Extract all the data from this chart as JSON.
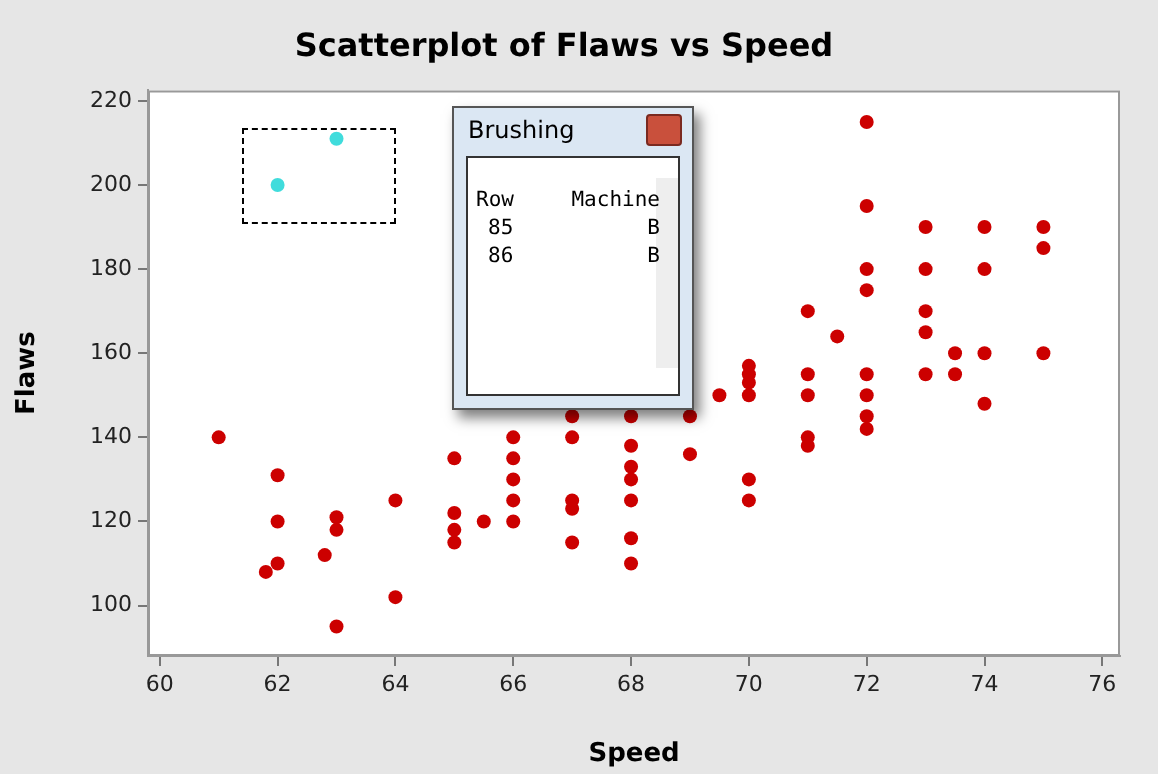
{
  "chart_data": {
    "type": "scatter",
    "title": "Scatterplot of Flaws vs Speed",
    "xlabel": "Speed",
    "ylabel": "Flaws",
    "xlim": [
      59.8,
      76.3
    ],
    "ylim": [
      88,
      222.5
    ],
    "xticks": [
      60,
      62,
      64,
      66,
      68,
      70,
      72,
      74,
      76
    ],
    "yticks": [
      100,
      120,
      140,
      160,
      180,
      200,
      220
    ],
    "grid": false,
    "legend": false,
    "marker": "circle",
    "annotations": [
      "Brushing",
      "Row",
      "Machine",
      "85",
      "B",
      "86",
      "B"
    ],
    "series": [
      {
        "color": "#cc0000",
        "x": [
          61,
          62,
          62,
          62,
          61.8,
          62.8,
          63,
          63,
          63,
          64,
          64,
          65,
          65,
          65,
          65,
          65.5,
          66,
          66,
          66,
          66,
          66,
          67,
          67,
          67,
          67,
          67,
          68,
          68,
          68,
          68,
          68,
          68,
          68,
          69,
          69,
          69.5,
          70,
          70,
          70,
          70,
          70,
          70,
          71,
          71,
          71,
          71,
          71,
          71.5,
          72,
          72,
          72,
          72,
          72,
          72,
          72,
          72,
          73,
          73,
          73,
          73,
          73,
          73.5,
          73.5,
          74,
          74,
          74,
          74,
          75,
          75,
          75
        ],
        "values": [
          140,
          131,
          120,
          110,
          108,
          112,
          121,
          118,
          95,
          125,
          102,
          135,
          122,
          118,
          115,
          120,
          140,
          135,
          130,
          125,
          120,
          145,
          140,
          125,
          123,
          115,
          145,
          138,
          133,
          130,
          125,
          116,
          110,
          145,
          136,
          150,
          157,
          155,
          153,
          150,
          130,
          125,
          170,
          155,
          150,
          140,
          138,
          164,
          215,
          195,
          180,
          175,
          155,
          150,
          145,
          142,
          190,
          180,
          170,
          165,
          155,
          160,
          155,
          190,
          180,
          160,
          148,
          190,
          185,
          160
        ]
      },
      {
        "color": "#40dcdc",
        "x": [
          62,
          63
        ],
        "values": [
          200,
          211
        ]
      }
    ]
  }
}
